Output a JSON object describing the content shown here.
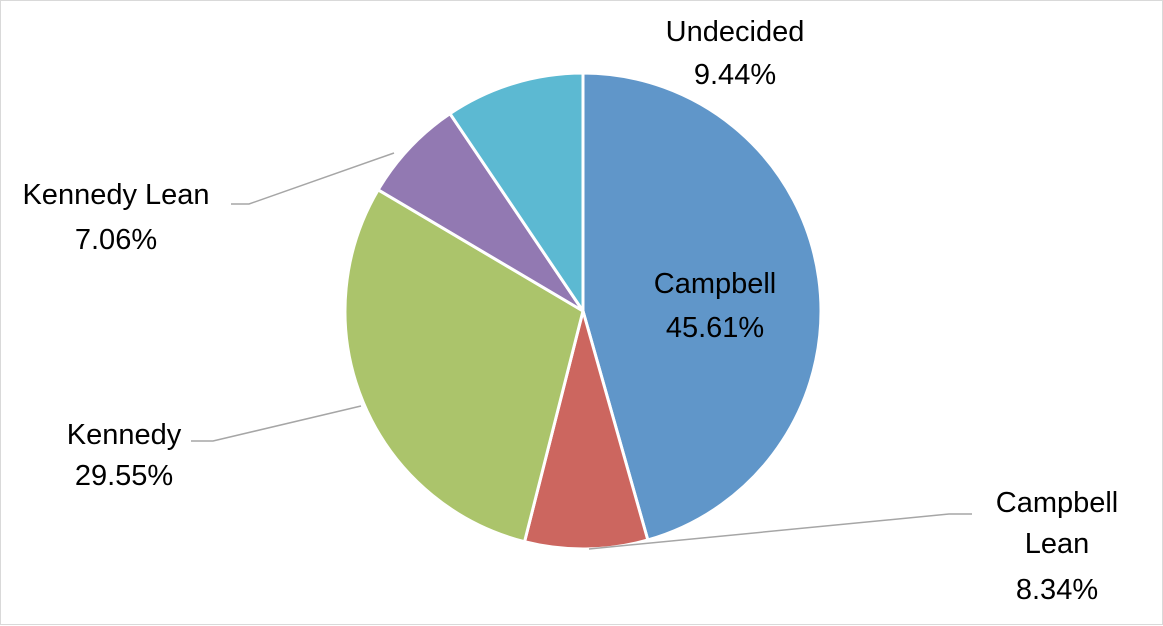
{
  "chart_data": {
    "type": "pie",
    "title": "",
    "start_angle_deg": 0,
    "direction": "clockwise",
    "slices": [
      {
        "name": "Campbell",
        "value": 45.61,
        "percent_label": "45.61%",
        "color": "#6096c9"
      },
      {
        "name": "Campbell Lean",
        "value": 8.34,
        "percent_label": "8.34%",
        "color": "#cc665f"
      },
      {
        "name": "Kennedy",
        "value": 29.55,
        "percent_label": "29.55%",
        "color": "#abc46b"
      },
      {
        "name": "Kennedy Lean",
        "value": 7.06,
        "percent_label": "7.06%",
        "color": "#9279b2"
      },
      {
        "name": "Undecided",
        "value": 9.44,
        "percent_label": "9.44%",
        "color": "#5cb9d2"
      }
    ],
    "legend": "none",
    "data_labels": "category and percentage"
  },
  "colors": {
    "slice_border": "#ffffff",
    "leader_line": "#a6a6a6",
    "frame_border": "#d9d9d9"
  }
}
